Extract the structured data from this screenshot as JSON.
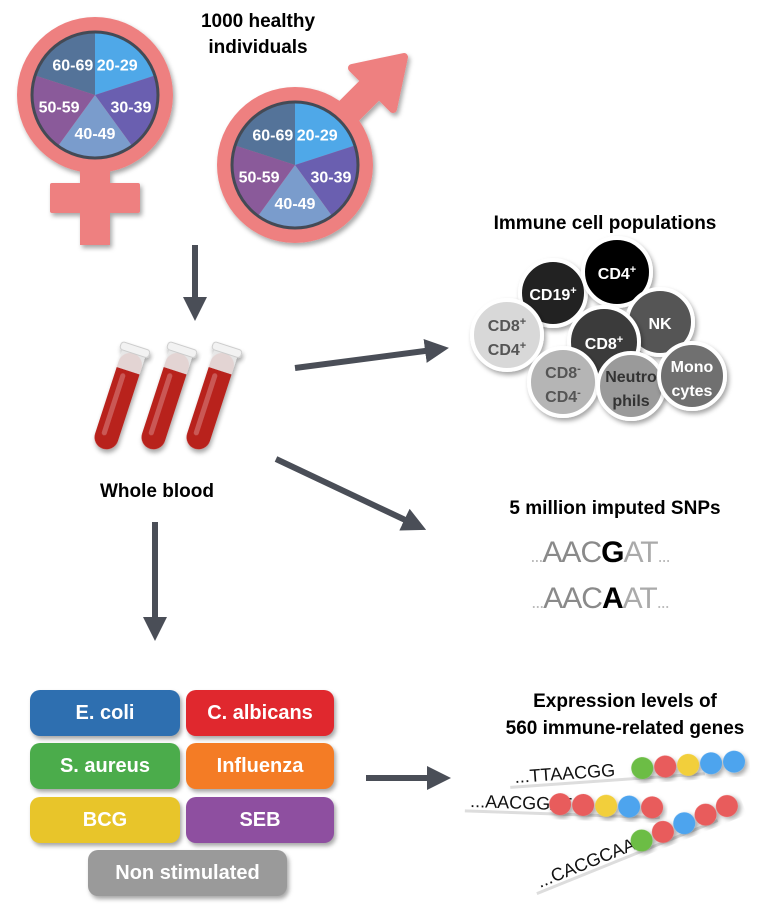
{
  "cohort": {
    "title_line1": "1000 healthy",
    "title_line2": "individuals",
    "age_groups": [
      "20-29",
      "30-39",
      "40-49",
      "50-59",
      "60-69"
    ],
    "age_colors": [
      "#4fa8e8",
      "#6a5fb0",
      "#7a9ccc",
      "#8a5a9a",
      "#547399"
    ],
    "symbol_color": "#ee8080"
  },
  "sample": {
    "label": "Whole blood",
    "tube_color": "#b8201c"
  },
  "immune": {
    "title": "Immune cell populations",
    "cells": [
      {
        "l1": "CD19",
        "s1": "+",
        "l2": "",
        "s2": "",
        "fill": "#222222",
        "text": "#ffffff"
      },
      {
        "l1": "CD4",
        "s1": "+",
        "l2": "",
        "s2": "",
        "fill": "#050505",
        "text": "#ffffff"
      },
      {
        "l1": "NK",
        "s1": "",
        "l2": "",
        "s2": "",
        "fill": "#555555",
        "text": "#ffffff"
      },
      {
        "l1": "CD8",
        "s1": "+",
        "l2": "CD4",
        "s2": "+",
        "fill": "#d8d8d8",
        "text": "#555555"
      },
      {
        "l1": "CD8",
        "s1": "+",
        "l2": "",
        "s2": "",
        "fill": "#3a3a3a",
        "text": "#ffffff"
      },
      {
        "l1": "CD8",
        "s1": "-",
        "l2": "CD4",
        "s2": "-",
        "fill": "#b5b5b5",
        "text": "#555555"
      },
      {
        "l1": "Neutro",
        "s1": "",
        "l2": "phils",
        "s2": "",
        "fill": "#9a9a9a",
        "text": "#333333"
      },
      {
        "l1": "Mono",
        "s1": "",
        "l2": "cytes",
        "s2": "",
        "fill": "#707070",
        "text": "#ffffff"
      }
    ]
  },
  "snps": {
    "title": "5 million imputed SNPs",
    "seq1": {
      "pre": "AAC",
      "snp": "G",
      "post": "AT"
    },
    "seq2": {
      "pre": "AAC",
      "snp": "A",
      "post": "AT"
    },
    "dots": "..."
  },
  "stimuli": [
    {
      "label": "E. coli",
      "color": "#2e6fb0"
    },
    {
      "label": "C. albicans",
      "color": "#e0282e"
    },
    {
      "label": "S. aureus",
      "color": "#4bac4b"
    },
    {
      "label": "Influenza",
      "color": "#f47c25"
    },
    {
      "label": "BCG",
      "color": "#e8c52a"
    },
    {
      "label": "SEB",
      "color": "#8e4fa0"
    },
    {
      "label": "Non stimulated",
      "color": "#9a9a9a"
    }
  ],
  "expression": {
    "title_line1": "Expression levels of",
    "title_line2": "560 immune-related genes",
    "reads": [
      {
        "seq": "...TTAACGG",
        "beads": [
          "#6cbd45",
          "#e85b5b",
          "#f2cf3a",
          "#4ea4ee",
          "#4ea4ee"
        ]
      },
      {
        "seq": "...AACGGAT",
        "beads": [
          "#e85b5b",
          "#e85b5b",
          "#f2cf3a",
          "#4ea4ee",
          "#e85b5b"
        ]
      },
      {
        "seq": "...CACGCAA",
        "beads": [
          "#6cbd45",
          "#e85b5b",
          "#4ea4ee",
          "#e85b5b",
          "#e85b5b"
        ]
      }
    ]
  },
  "arrow_color": "#4a4e57"
}
